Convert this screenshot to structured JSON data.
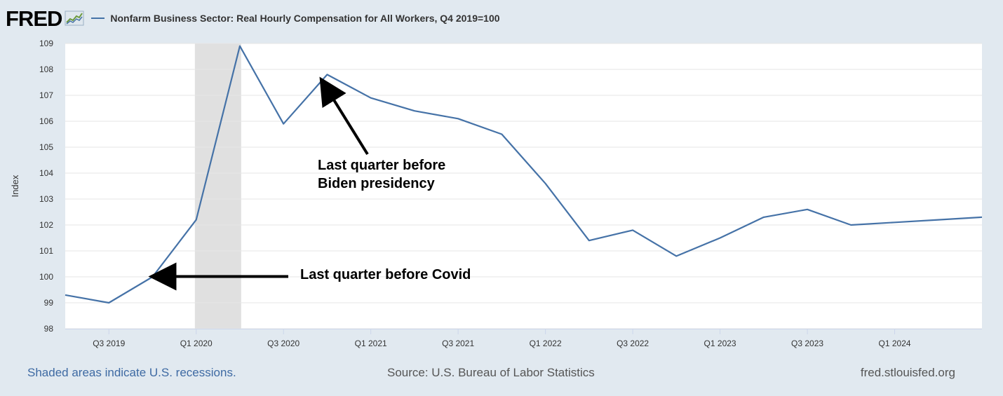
{
  "header": {
    "logo_text": "FRED",
    "legend_label": "Nonfarm Business Sector: Real Hourly Compensation for All Workers, Q4 2019=100"
  },
  "footer": {
    "recession_note": "Shaded areas indicate U.S. recessions.",
    "source": "Source: U.S. Bureau of Labor Statistics",
    "site": "fred.stlouisfed.org"
  },
  "colors": {
    "series": "#4572a7",
    "background": "#e1e9f0",
    "plot_background": "#ffffff",
    "recession": "#e0e0e0"
  },
  "chart_data": {
    "type": "line",
    "title": "Nonfarm Business Sector: Real Hourly Compensation for All Workers, Q4 2019=100",
    "ylabel": "Index",
    "xlabel": "",
    "ylim": [
      98,
      109
    ],
    "yticks": [
      98,
      99,
      100,
      101,
      102,
      103,
      104,
      105,
      106,
      107,
      108,
      109
    ],
    "grid": true,
    "xlim": [
      "Q2 2019",
      "Q3 2024"
    ],
    "xticks": [
      "Q3 2019",
      "Q1 2020",
      "Q3 2020",
      "Q1 2021",
      "Q3 2021",
      "Q1 2022",
      "Q3 2022",
      "Q1 2023",
      "Q3 2023",
      "Q1 2024"
    ],
    "series": [
      {
        "name": "Nonfarm Business Sector: Real Hourly Compensation for All Workers, Q4 2019=100",
        "x": [
          "Q2 2019",
          "Q3 2019",
          "Q4 2019",
          "Q1 2020",
          "Q2 2020",
          "Q3 2020",
          "Q4 2020",
          "Q1 2021",
          "Q2 2021",
          "Q3 2021",
          "Q4 2021",
          "Q1 2022",
          "Q2 2022",
          "Q3 2022",
          "Q4 2022",
          "Q1 2023",
          "Q2 2023",
          "Q3 2023",
          "Q4 2023",
          "Q1 2024",
          "Q2 2024",
          "Q3 2024"
        ],
        "values": [
          99.3,
          99.0,
          100.0,
          102.2,
          108.9,
          105.9,
          107.8,
          106.9,
          106.4,
          106.1,
          105.5,
          103.6,
          101.4,
          101.8,
          100.8,
          101.5,
          102.3,
          102.6,
          102.0,
          102.1,
          102.2,
          102.3
        ]
      }
    ],
    "recessions": [
      {
        "start": "Q1 2020",
        "end": "Q2 2020"
      }
    ],
    "annotations": [
      {
        "text": "Last quarter before Covid",
        "points_to": "Q4 2019",
        "value": 100.0
      },
      {
        "lines": [
          "Last quarter before",
          "Biden presidency"
        ],
        "points_to": "Q4 2020",
        "value": 107.8
      }
    ]
  }
}
